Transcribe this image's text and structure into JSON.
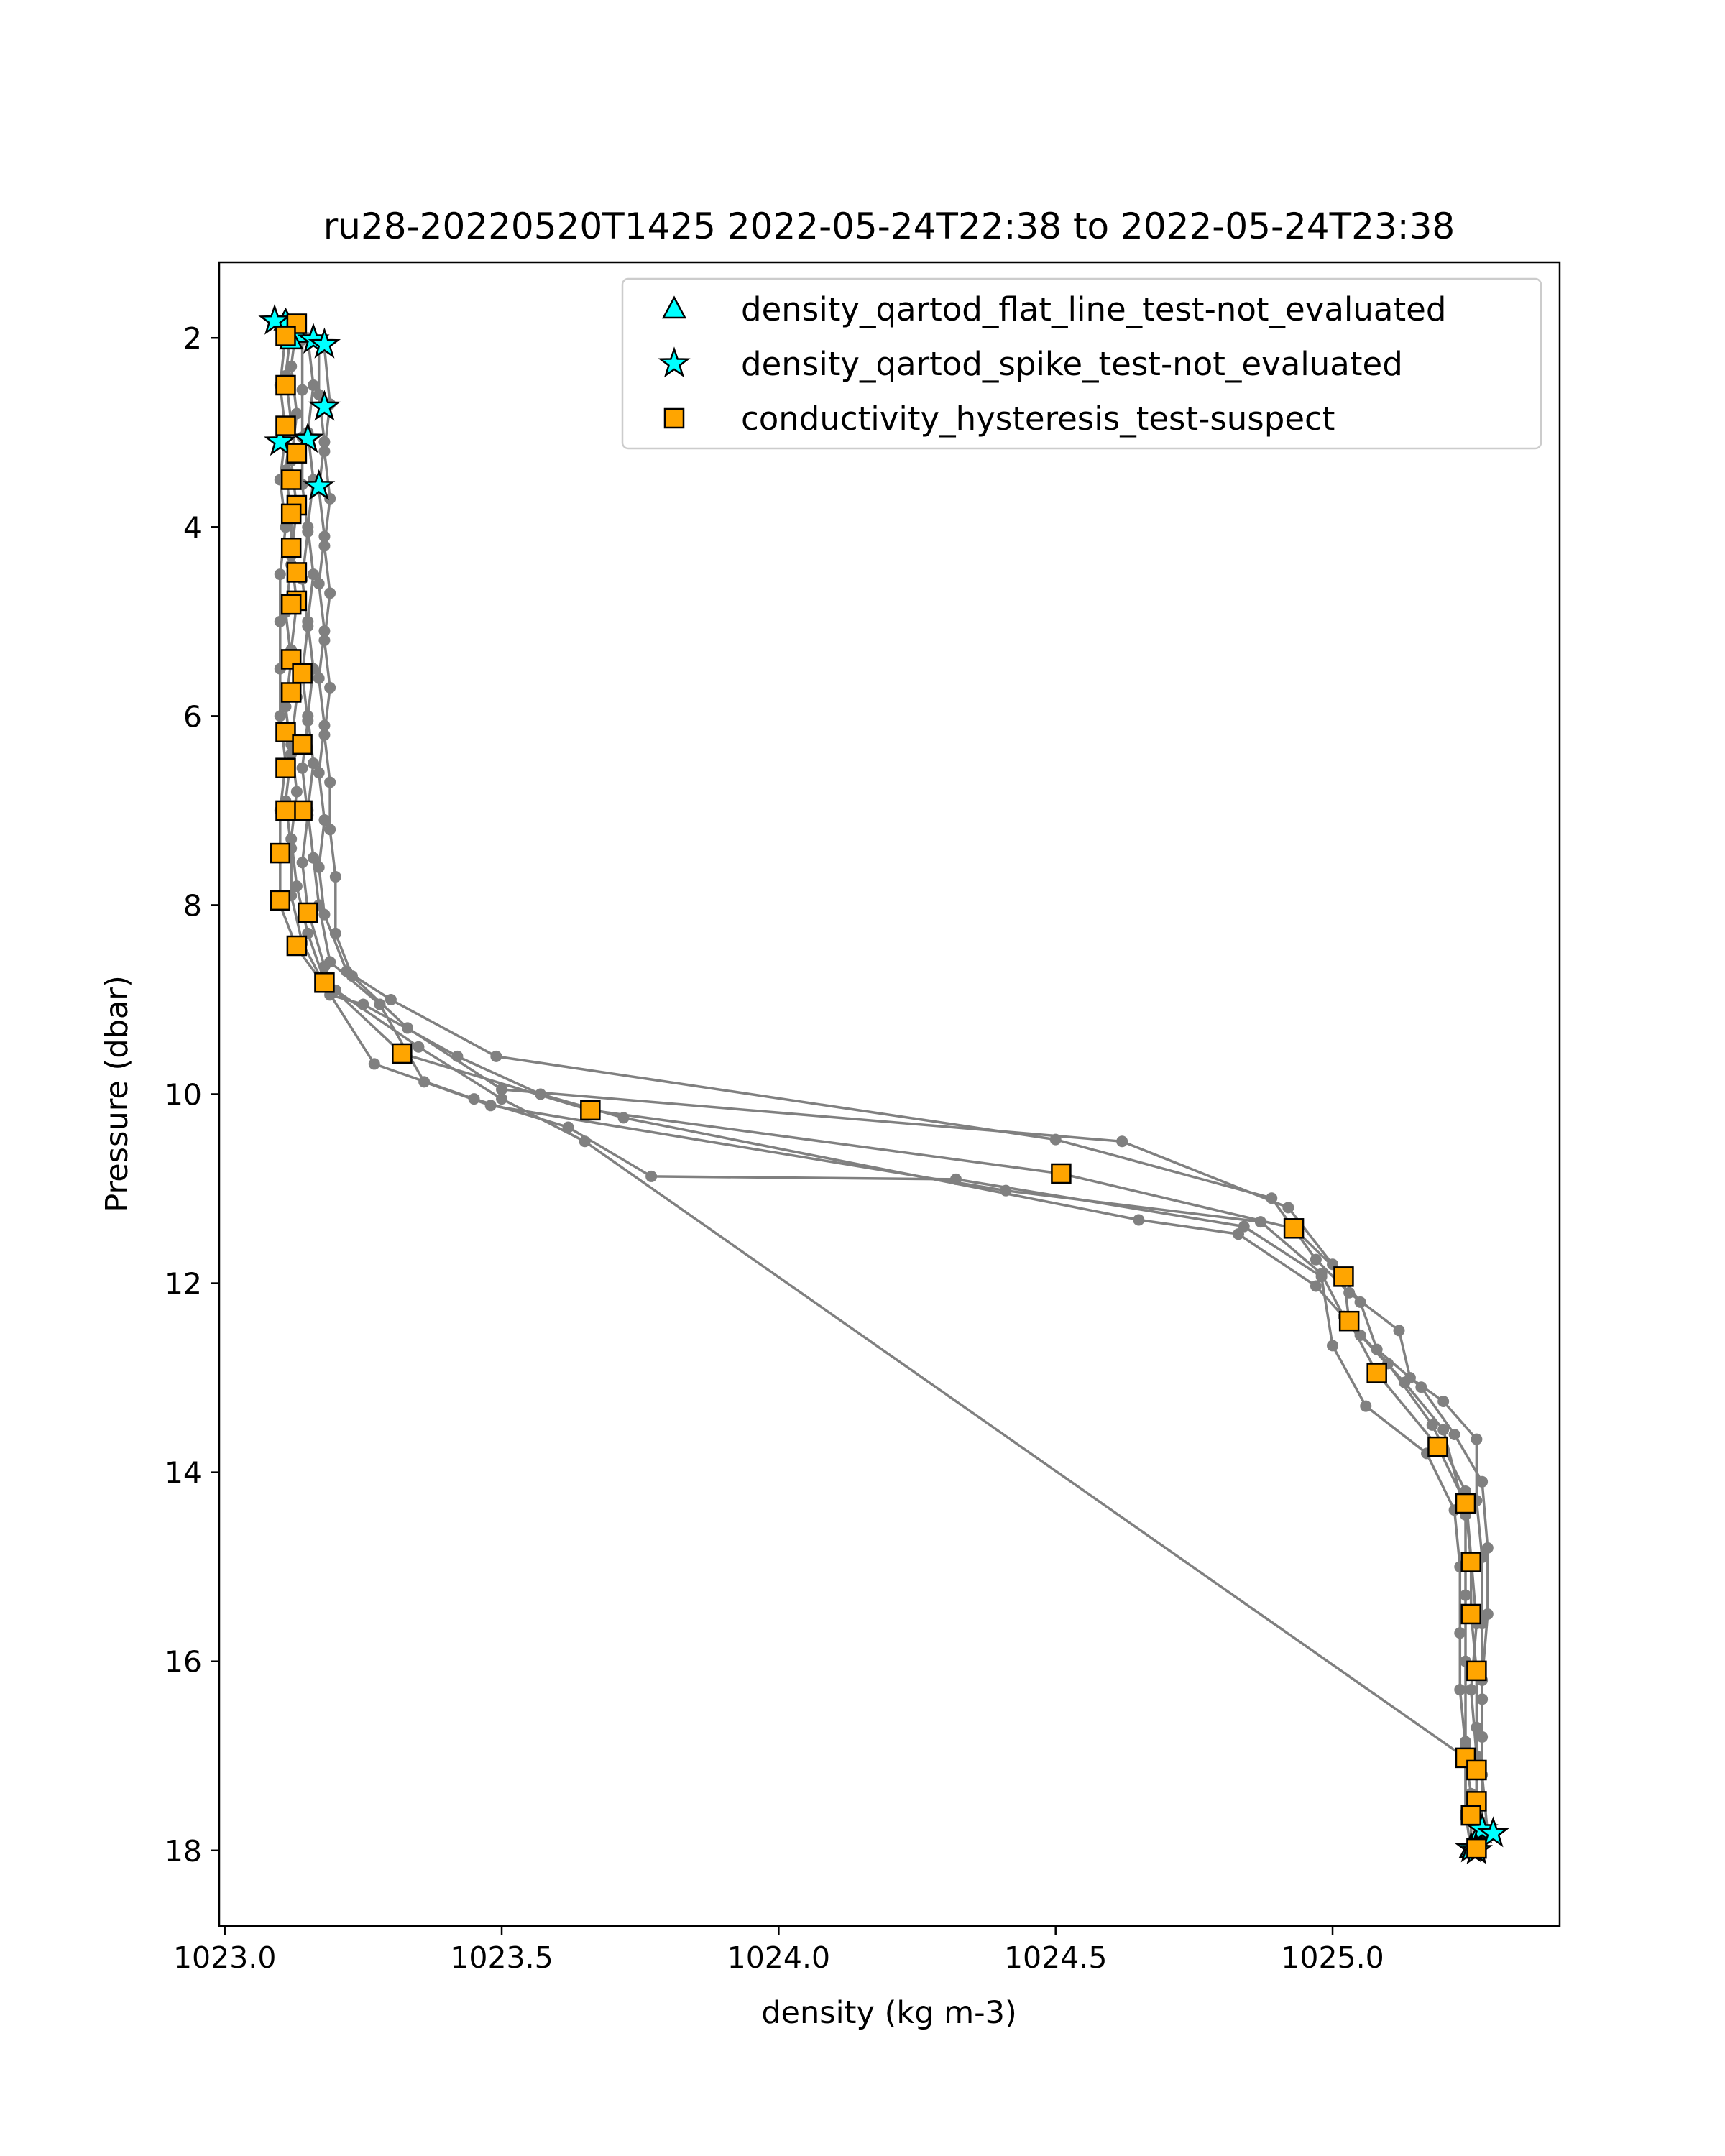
{
  "chart_data": {
    "type": "scatter",
    "title": "ru28-20220520T1425 2022-05-24T22:38 to 2022-05-24T23:38",
    "xlabel": "density (kg m-3)",
    "ylabel": "Pressure (dbar)",
    "xlim": [
      1022.99,
      1025.41
    ],
    "ylim": [
      18.8,
      1.2
    ],
    "y_inverted": true,
    "xticks": [
      1023.0,
      1023.5,
      1024.0,
      1024.5,
      1025.0
    ],
    "xtick_labels": [
      "1023.0",
      "1023.5",
      "1024.0",
      "1024.5",
      "1025.0"
    ],
    "yticks": [
      2,
      4,
      6,
      8,
      10,
      12,
      14,
      16,
      18
    ],
    "ytick_labels": [
      "2",
      "4",
      "6",
      "8",
      "10",
      "12",
      "14",
      "16",
      "18"
    ],
    "grid": false,
    "legend_position": "top-right",
    "profile_color": "#808080",
    "profiles": [
      {
        "points": [
          [
            1023.13,
            1.85
          ],
          [
            1023.12,
            2.3
          ],
          [
            1023.13,
            2.8
          ],
          [
            1023.12,
            3.3
          ],
          [
            1023.13,
            3.8
          ],
          [
            1023.12,
            4.3
          ],
          [
            1023.13,
            4.8
          ],
          [
            1023.12,
            5.3
          ],
          [
            1023.13,
            5.8
          ],
          [
            1023.12,
            6.3
          ],
          [
            1023.13,
            6.8
          ],
          [
            1023.12,
            7.3
          ],
          [
            1023.13,
            7.8
          ],
          [
            1023.15,
            8.3
          ],
          [
            1023.18,
            8.8
          ],
          [
            1023.32,
            9.57
          ],
          [
            1023.66,
            10.17
          ],
          [
            1024.51,
            10.84
          ],
          [
            1024.93,
            11.42
          ],
          [
            1025.02,
            11.93
          ],
          [
            1025.03,
            12.4
          ],
          [
            1025.08,
            12.95
          ],
          [
            1025.19,
            13.73
          ],
          [
            1025.24,
            14.33
          ],
          [
            1025.25,
            14.95
          ],
          [
            1025.25,
            15.5
          ],
          [
            1025.26,
            16.1
          ],
          [
            1025.26,
            16.7
          ],
          [
            1025.26,
            17.15
          ],
          [
            1025.26,
            17.5
          ],
          [
            1025.27,
            17.95
          ]
        ]
      },
      {
        "points": [
          [
            1023.11,
            1.95
          ],
          [
            1023.1,
            2.5
          ],
          [
            1023.11,
            3.0
          ],
          [
            1023.1,
            3.5
          ],
          [
            1023.11,
            4.0
          ],
          [
            1023.1,
            4.5
          ],
          [
            1023.1,
            5.0
          ],
          [
            1023.1,
            5.5
          ],
          [
            1023.1,
            6.0
          ],
          [
            1023.11,
            6.5
          ],
          [
            1023.1,
            7.0
          ],
          [
            1023.1,
            7.5
          ],
          [
            1023.1,
            8.0
          ],
          [
            1023.13,
            8.45
          ],
          [
            1023.18,
            8.85
          ],
          [
            1023.27,
            9.68
          ],
          [
            1023.45,
            10.05
          ],
          [
            1023.62,
            10.35
          ],
          [
            1023.77,
            10.87
          ],
          [
            1024.32,
            10.9
          ],
          [
            1024.84,
            11.4
          ],
          [
            1024.98,
            11.93
          ],
          [
            1025.0,
            12.66
          ],
          [
            1025.06,
            13.3
          ],
          [
            1025.17,
            13.8
          ],
          [
            1025.22,
            14.4
          ],
          [
            1025.23,
            15.0
          ],
          [
            1025.23,
            15.7
          ],
          [
            1025.23,
            16.3
          ],
          [
            1025.24,
            16.9
          ],
          [
            1025.24,
            17.6
          ],
          [
            1025.25,
            18.0
          ]
        ]
      },
      {
        "points": [
          [
            1023.15,
            2.0
          ],
          [
            1023.16,
            2.5
          ],
          [
            1023.15,
            3.0
          ],
          [
            1023.16,
            3.5
          ],
          [
            1023.15,
            4.0
          ],
          [
            1023.16,
            4.5
          ],
          [
            1023.15,
            5.0
          ],
          [
            1023.16,
            5.5
          ],
          [
            1023.15,
            6.0
          ],
          [
            1023.16,
            6.5
          ],
          [
            1023.15,
            7.0
          ],
          [
            1023.16,
            7.5
          ],
          [
            1023.17,
            8.0
          ],
          [
            1023.19,
            8.6
          ],
          [
            1023.28,
            9.05
          ],
          [
            1023.36,
            9.87
          ],
          [
            1023.48,
            10.12
          ],
          [
            1024.41,
            11.02
          ],
          [
            1024.87,
            11.35
          ],
          [
            1024.98,
            11.9
          ],
          [
            1025.02,
            12.35
          ],
          [
            1025.1,
            12.85
          ],
          [
            1025.18,
            13.5
          ],
          [
            1025.24,
            14.2
          ],
          [
            1025.25,
            14.9
          ],
          [
            1025.26,
            15.6
          ],
          [
            1025.25,
            16.3
          ],
          [
            1025.26,
            17.0
          ],
          [
            1025.26,
            17.9
          ]
        ]
      },
      {
        "points": [
          [
            1023.17,
            2.05
          ],
          [
            1023.17,
            2.6
          ],
          [
            1023.18,
            3.1
          ],
          [
            1023.17,
            3.6
          ],
          [
            1023.18,
            4.1
          ],
          [
            1023.17,
            4.6
          ],
          [
            1023.18,
            5.1
          ],
          [
            1023.17,
            5.6
          ],
          [
            1023.18,
            6.1
          ],
          [
            1023.17,
            6.6
          ],
          [
            1023.18,
            7.1
          ],
          [
            1023.17,
            7.6
          ],
          [
            1023.18,
            8.1
          ],
          [
            1023.22,
            8.7
          ],
          [
            1023.3,
            9.0
          ],
          [
            1023.49,
            9.6
          ],
          [
            1024.5,
            10.48
          ],
          [
            1024.89,
            11.1
          ],
          [
            1024.97,
            11.75
          ],
          [
            1025.03,
            12.1
          ],
          [
            1025.12,
            12.5
          ],
          [
            1025.14,
            13.0
          ],
          [
            1025.2,
            13.25
          ],
          [
            1025.26,
            13.65
          ],
          [
            1025.26,
            14.3
          ],
          [
            1025.27,
            14.9
          ],
          [
            1025.27,
            15.6
          ],
          [
            1025.27,
            16.4
          ],
          [
            1025.27,
            17.2
          ],
          [
            1025.28,
            17.82
          ]
        ]
      },
      {
        "points": [
          [
            1023.18,
            2.1
          ],
          [
            1023.19,
            2.7
          ],
          [
            1023.18,
            3.2
          ],
          [
            1023.19,
            3.7
          ],
          [
            1023.18,
            4.2
          ],
          [
            1023.19,
            4.7
          ],
          [
            1023.18,
            5.2
          ],
          [
            1023.19,
            5.7
          ],
          [
            1023.18,
            6.2
          ],
          [
            1023.19,
            6.7
          ],
          [
            1023.19,
            7.2
          ],
          [
            1023.2,
            7.7
          ],
          [
            1023.2,
            8.3
          ],
          [
            1023.23,
            8.75
          ],
          [
            1023.33,
            9.3
          ],
          [
            1023.5,
            9.95
          ],
          [
            1024.62,
            10.5
          ],
          [
            1024.92,
            11.2
          ],
          [
            1025.0,
            11.8
          ],
          [
            1025.05,
            12.2
          ],
          [
            1025.08,
            12.7
          ],
          [
            1025.16,
            13.1
          ],
          [
            1025.22,
            13.6
          ],
          [
            1025.27,
            14.1
          ],
          [
            1025.28,
            14.8
          ],
          [
            1025.28,
            15.5
          ],
          [
            1025.27,
            16.2
          ],
          [
            1025.27,
            16.8
          ],
          [
            1025.27,
            17.7
          ]
        ]
      },
      {
        "points": [
          [
            1023.12,
            1.9
          ],
          [
            1023.11,
            2.4
          ],
          [
            1023.12,
            2.9
          ],
          [
            1023.11,
            3.4
          ],
          [
            1023.12,
            3.9
          ],
          [
            1023.12,
            4.4
          ],
          [
            1023.11,
            4.9
          ],
          [
            1023.12,
            5.4
          ],
          [
            1023.11,
            5.9
          ],
          [
            1023.12,
            6.4
          ],
          [
            1023.11,
            6.9
          ],
          [
            1023.12,
            7.4
          ],
          [
            1023.12,
            7.9
          ],
          [
            1023.14,
            8.4
          ],
          [
            1023.19,
            8.95
          ],
          [
            1023.25,
            9.05
          ],
          [
            1023.42,
            9.6
          ],
          [
            1023.57,
            10.0
          ],
          [
            1023.72,
            10.25
          ],
          [
            1024.65,
            11.33
          ],
          [
            1024.83,
            11.48
          ],
          [
            1024.97,
            12.03
          ],
          [
            1025.05,
            12.55
          ],
          [
            1025.13,
            13.05
          ],
          [
            1025.2,
            13.55
          ],
          [
            1025.24,
            14.45
          ],
          [
            1025.24,
            15.3
          ],
          [
            1025.24,
            16.0
          ],
          [
            1025.24,
            16.85
          ],
          [
            1025.24,
            17.65
          ]
        ]
      },
      {
        "points": [
          [
            1023.14,
            2.02
          ],
          [
            1023.14,
            2.55
          ],
          [
            1023.14,
            3.05
          ],
          [
            1023.14,
            3.55
          ],
          [
            1023.15,
            4.05
          ],
          [
            1023.14,
            4.55
          ],
          [
            1023.15,
            5.05
          ],
          [
            1023.14,
            5.55
          ],
          [
            1023.15,
            6.05
          ],
          [
            1023.14,
            6.55
          ],
          [
            1023.15,
            7.05
          ],
          [
            1023.14,
            7.55
          ],
          [
            1023.15,
            8.05
          ],
          [
            1023.18,
            8.65
          ],
          [
            1023.2,
            8.9
          ],
          [
            1023.35,
            9.5
          ],
          [
            1023.5,
            10.05
          ],
          [
            1023.65,
            10.5
          ],
          [
            1025.24,
            17.02
          ],
          [
            1025.25,
            17.4
          ],
          [
            1025.25,
            17.98
          ]
        ]
      }
    ],
    "series": [
      {
        "name": "density_qartod_flat_line_test-not_evaluated",
        "marker": "triangle",
        "color": "#00ffff",
        "points": [
          [
            1023.11,
            1.82
          ],
          [
            1023.13,
            1.95
          ],
          [
            1023.12,
            2.02
          ],
          [
            1025.26,
            17.88
          ],
          [
            1025.25,
            17.98
          ]
        ]
      },
      {
        "name": "density_qartod_spike_test-not_evaluated",
        "marker": "star",
        "color": "#00ffff",
        "points": [
          [
            1023.09,
            1.82
          ],
          [
            1023.16,
            2.02
          ],
          [
            1023.18,
            2.07
          ],
          [
            1023.18,
            2.73
          ],
          [
            1023.1,
            3.1
          ],
          [
            1023.15,
            3.07
          ],
          [
            1023.17,
            3.57
          ],
          [
            1025.27,
            17.78
          ],
          [
            1025.29,
            17.82
          ],
          [
            1025.25,
            17.98
          ],
          [
            1025.26,
            18.0
          ]
        ]
      },
      {
        "name": "conductivity_hysteresis_test-suspect",
        "marker": "square",
        "color": "#ffa500",
        "points": [
          [
            1023.13,
            1.85
          ],
          [
            1023.11,
            1.98
          ],
          [
            1023.11,
            2.5
          ],
          [
            1023.11,
            2.93
          ],
          [
            1023.13,
            3.22
          ],
          [
            1023.12,
            3.5
          ],
          [
            1023.13,
            3.77
          ],
          [
            1023.12,
            3.86
          ],
          [
            1023.12,
            4.22
          ],
          [
            1023.13,
            4.48
          ],
          [
            1023.13,
            4.78
          ],
          [
            1023.12,
            4.82
          ],
          [
            1023.12,
            5.4
          ],
          [
            1023.14,
            5.55
          ],
          [
            1023.12,
            5.75
          ],
          [
            1023.11,
            6.17
          ],
          [
            1023.14,
            6.3
          ],
          [
            1023.11,
            6.55
          ],
          [
            1023.14,
            7.0
          ],
          [
            1023.11,
            7.0
          ],
          [
            1023.1,
            7.45
          ],
          [
            1023.15,
            8.08
          ],
          [
            1023.1,
            7.95
          ],
          [
            1023.13,
            8.43
          ],
          [
            1023.18,
            8.82
          ],
          [
            1023.32,
            9.57
          ],
          [
            1023.66,
            10.17
          ],
          [
            1024.51,
            10.84
          ],
          [
            1024.93,
            11.42
          ],
          [
            1025.02,
            11.93
          ],
          [
            1025.03,
            12.4
          ],
          [
            1025.08,
            12.95
          ],
          [
            1025.19,
            13.73
          ],
          [
            1025.24,
            14.33
          ],
          [
            1025.25,
            14.95
          ],
          [
            1025.25,
            15.5
          ],
          [
            1025.26,
            16.1
          ],
          [
            1025.24,
            17.02
          ],
          [
            1025.26,
            17.15
          ],
          [
            1025.26,
            17.48
          ],
          [
            1025.25,
            17.63
          ],
          [
            1025.26,
            17.98
          ]
        ]
      }
    ]
  }
}
